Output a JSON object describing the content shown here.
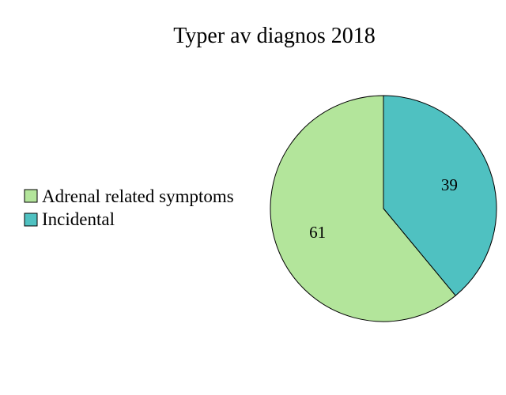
{
  "chart_data": {
    "type": "pie",
    "title": "Typer av diagnos 2018",
    "categories": [
      "Adrenal related symptoms",
      "Incidental"
    ],
    "values": [
      61,
      39
    ],
    "colors": [
      "#b3e59b",
      "#4fc1c1"
    ],
    "data_labels": [
      "61",
      "39"
    ],
    "legend_position": "left",
    "start": "12 o'clock",
    "direction": "clockwise, Incidental first"
  }
}
